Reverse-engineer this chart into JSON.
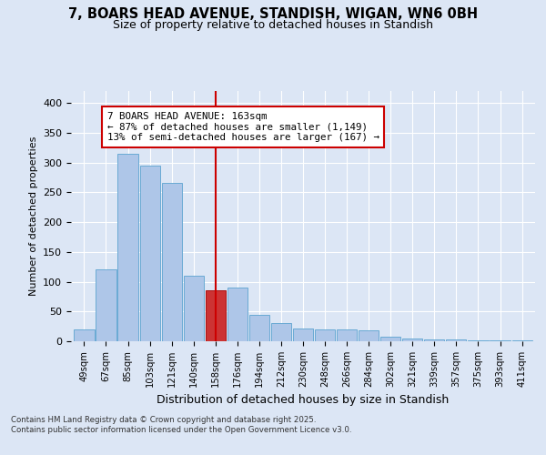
{
  "title": "7, BOARS HEAD AVENUE, STANDISH, WIGAN, WN6 0BH",
  "subtitle": "Size of property relative to detached houses in Standish",
  "xlabel": "Distribution of detached houses by size in Standish",
  "ylabel": "Number of detached properties",
  "categories": [
    "49sqm",
    "67sqm",
    "85sqm",
    "103sqm",
    "121sqm",
    "140sqm",
    "158sqm",
    "176sqm",
    "194sqm",
    "212sqm",
    "230sqm",
    "248sqm",
    "266sqm",
    "284sqm",
    "302sqm",
    "321sqm",
    "339sqm",
    "357sqm",
    "375sqm",
    "393sqm",
    "411sqm"
  ],
  "values": [
    20,
    120,
    315,
    295,
    265,
    110,
    85,
    90,
    45,
    30,
    22,
    20,
    20,
    18,
    8,
    5,
    3,
    3,
    2,
    2,
    2
  ],
  "bar_color": "#aec6e8",
  "bar_edge_color": "#6aaad4",
  "highlight_bar_index": 6,
  "highlight_bar_color": "#cc3333",
  "highlight_bar_edge_color": "#aa1111",
  "vline_color": "#cc0000",
  "annotation_text": "7 BOARS HEAD AVENUE: 163sqm\n← 87% of detached houses are smaller (1,149)\n13% of semi-detached houses are larger (167) →",
  "annotation_box_facecolor": "#ffffff",
  "annotation_box_edge": "#cc0000",
  "footer": "Contains HM Land Registry data © Crown copyright and database right 2025.\nContains public sector information licensed under the Open Government Licence v3.0.",
  "background_color": "#dce6f5",
  "plot_bg_color": "#dce6f5",
  "ylim": [
    0,
    420
  ],
  "yticks": [
    0,
    50,
    100,
    150,
    200,
    250,
    300,
    350,
    400
  ]
}
